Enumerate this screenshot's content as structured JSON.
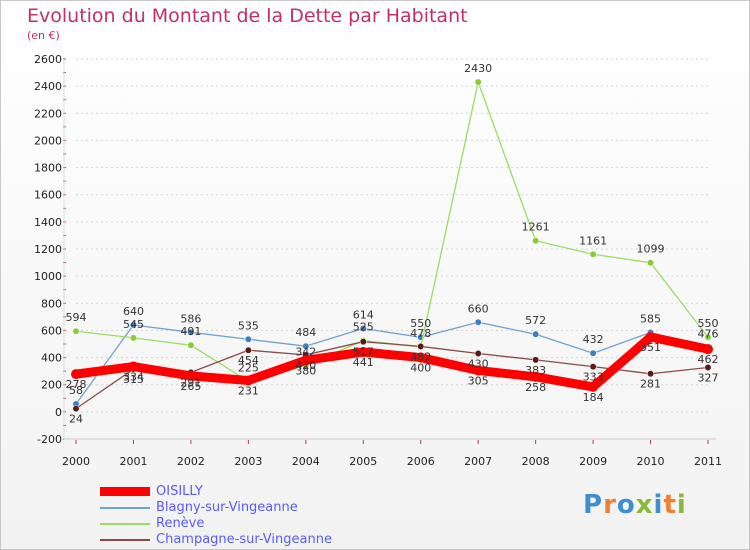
{
  "chart_data": {
    "type": "line",
    "title": "Evolution du Montant de la Dette par Habitant",
    "subtitle": "(en €)",
    "xlabel": "",
    "ylabel": "",
    "ylim": [
      -200,
      2600
    ],
    "yticks": [
      -200,
      0,
      200,
      400,
      600,
      800,
      1000,
      1200,
      1400,
      1600,
      1800,
      2000,
      2200,
      2400,
      2600
    ],
    "categories": [
      "2000",
      "2001",
      "2002",
      "2003",
      "2004",
      "2005",
      "2006",
      "2007",
      "2008",
      "2009",
      "2010",
      "2011"
    ],
    "legend_position": "bottom-left",
    "series": [
      {
        "name": "OISILLY",
        "color": "#ff0000",
        "marker_color": "#ff0000",
        "values": [
          278,
          334,
          265,
          231,
          380,
          441,
          400,
          305,
          258,
          184,
          551,
          462
        ]
      },
      {
        "name": "Blagny-sur-Vingeanne",
        "color": "#6fa3d0",
        "marker_color": "#3d7fc0",
        "values": [
          58,
          640,
          586,
          535,
          484,
          614,
          550,
          660,
          572,
          432,
          585,
          476
        ]
      },
      {
        "name": "Renève",
        "color": "#99dd66",
        "marker_color": "#88cc33",
        "values": [
          594,
          545,
          491,
          225,
          342,
          525,
          478,
          2430,
          1261,
          1161,
          1099,
          550
        ]
      },
      {
        "name": "Champagne-sur-Vingeanne",
        "color": "#8a4a4a",
        "marker_color": "#5a1a1a",
        "values": [
          24,
          315,
          291,
          454,
          420,
          517,
          482,
          430,
          383,
          333,
          281,
          327
        ]
      }
    ]
  },
  "logo": {
    "text": "Proxiti",
    "colors": [
      "#3d8fd0",
      "#f08030",
      "#3d8fd0",
      "#88bb33",
      "#3d8fd0",
      "#f08030",
      "#88bb33"
    ]
  }
}
